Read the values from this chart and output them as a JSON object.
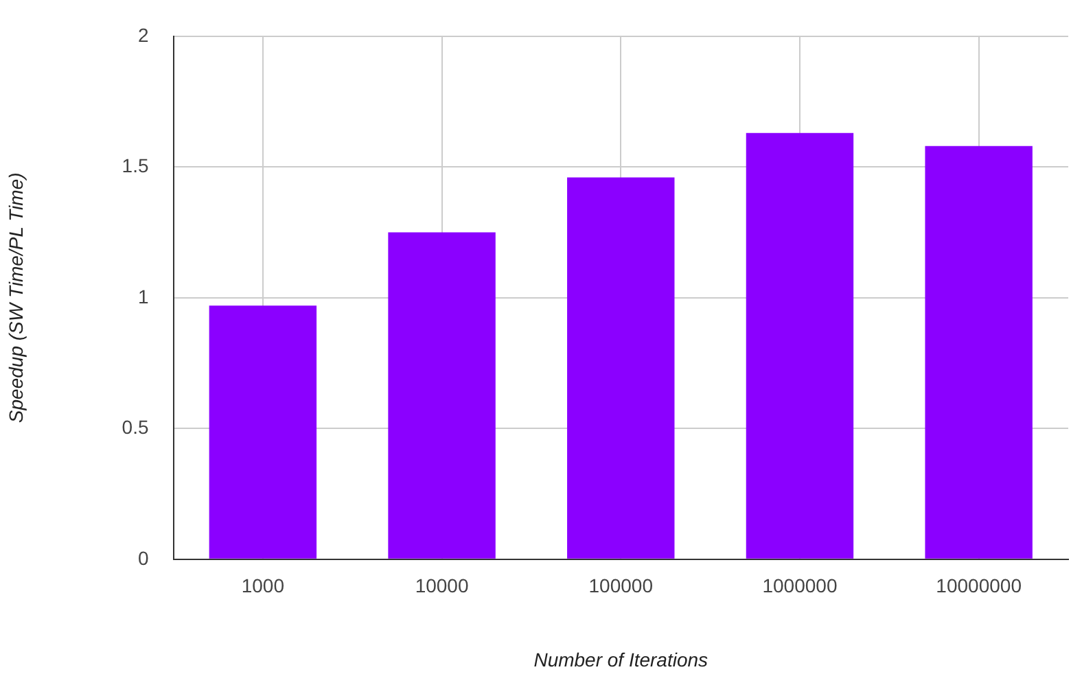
{
  "chart_data": {
    "type": "bar",
    "xlabel": "Number of Iterations",
    "ylabel": "Speedup (SW Time/PL Time)",
    "categories": [
      "1000",
      "10000",
      "100000",
      "1000000",
      "10000000"
    ],
    "values": [
      0.97,
      1.25,
      1.46,
      1.63,
      1.58
    ],
    "color": "#8b00ff",
    "ylim": [
      0,
      2
    ],
    "yticks": [
      0,
      0.5,
      1,
      1.5,
      2
    ],
    "grid": true,
    "legend": false
  }
}
